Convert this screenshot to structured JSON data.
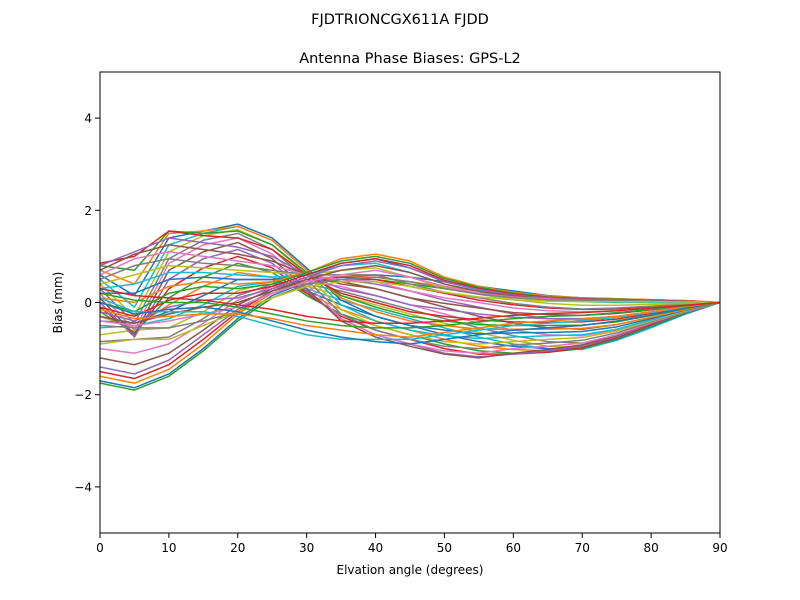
{
  "figure": {
    "suptitle": "FJDTRIONCGX611A FJDD"
  },
  "chart_data": {
    "type": "line",
    "title": "Antenna Phase Biases: GPS-L2",
    "xlabel": "Elvation angle (degrees)",
    "ylabel": "Bias (mm)",
    "xlim": [
      0,
      90
    ],
    "ylim": [
      -5,
      5
    ],
    "xticks": [
      0,
      10,
      20,
      30,
      40,
      50,
      60,
      70,
      80,
      90
    ],
    "yticks": [
      -4,
      -2,
      0,
      2,
      4
    ],
    "xtick_labels": [
      "0",
      "10",
      "20",
      "30",
      "40",
      "50",
      "60",
      "70",
      "80",
      "90"
    ],
    "ytick_labels": [
      "−4",
      "−2",
      "0",
      "2",
      "4"
    ],
    "grid": false,
    "legend": "none",
    "x": [
      0,
      5,
      10,
      15,
      20,
      25,
      30,
      35,
      40,
      45,
      50,
      55,
      60,
      65,
      70,
      75,
      80,
      85,
      90
    ],
    "colors": [
      "#1f77b4",
      "#ff7f0e",
      "#2ca02c",
      "#d62728",
      "#9467bd",
      "#8c564b",
      "#e377c2",
      "#7f7f7f",
      "#bcbd22",
      "#17becf"
    ],
    "series": [
      {
        "values": [
          -1.7,
          -1.85,
          -1.55,
          -1.0,
          -0.35,
          0.15,
          0.45,
          0.55,
          0.6,
          0.55,
          0.45,
          0.35,
          0.25,
          0.15,
          0.1,
          0.08,
          0.06,
          0.04,
          0.0
        ]
      },
      {
        "values": [
          -1.6,
          -1.75,
          -1.45,
          -0.9,
          -0.25,
          0.2,
          0.45,
          0.55,
          0.55,
          0.45,
          0.35,
          0.25,
          0.18,
          0.12,
          0.08,
          0.07,
          0.06,
          0.04,
          0.0
        ]
      },
      {
        "values": [
          -1.75,
          -1.9,
          -1.6,
          -1.05,
          -0.4,
          0.1,
          0.4,
          0.5,
          0.5,
          0.4,
          0.3,
          0.2,
          0.15,
          0.1,
          0.08,
          0.06,
          0.05,
          0.03,
          0.0
        ]
      },
      {
        "values": [
          -1.5,
          -1.65,
          -1.35,
          -0.8,
          -0.2,
          0.25,
          0.5,
          0.55,
          0.5,
          0.35,
          0.2,
          0.05,
          -0.05,
          -0.12,
          -0.15,
          -0.14,
          -0.1,
          -0.05,
          0.0
        ]
      },
      {
        "values": [
          -1.4,
          -1.55,
          -1.25,
          -0.7,
          -0.15,
          0.25,
          0.45,
          0.5,
          0.4,
          0.25,
          0.05,
          -0.1,
          -0.25,
          -0.35,
          -0.38,
          -0.32,
          -0.22,
          -0.1,
          0.0
        ]
      },
      {
        "values": [
          -1.2,
          -1.35,
          -1.1,
          -0.6,
          -0.05,
          0.3,
          0.5,
          0.45,
          0.3,
          0.1,
          -0.1,
          -0.3,
          -0.45,
          -0.55,
          -0.58,
          -0.48,
          -0.32,
          -0.15,
          0.0
        ]
      },
      {
        "values": [
          -1.0,
          -1.1,
          -0.9,
          -0.45,
          0.05,
          0.35,
          0.45,
          0.35,
          0.15,
          -0.05,
          -0.25,
          -0.45,
          -0.6,
          -0.7,
          -0.72,
          -0.6,
          -0.4,
          -0.18,
          0.0
        ]
      },
      {
        "values": [
          -0.85,
          -0.8,
          -0.75,
          -0.35,
          0.15,
          0.4,
          0.4,
          0.25,
          0.05,
          -0.15,
          -0.35,
          -0.55,
          -0.72,
          -0.85,
          -0.88,
          -0.72,
          -0.48,
          -0.22,
          0.0
        ]
      },
      {
        "values": [
          -0.7,
          -0.6,
          -0.55,
          -0.2,
          0.25,
          0.45,
          0.35,
          0.15,
          -0.05,
          -0.25,
          -0.45,
          -0.65,
          -0.82,
          -0.95,
          -0.98,
          -0.8,
          -0.52,
          -0.25,
          0.0
        ]
      },
      {
        "values": [
          -0.55,
          -0.5,
          -0.35,
          -0.05,
          0.35,
          0.45,
          0.3,
          0.05,
          -0.15,
          -0.35,
          -0.55,
          -0.75,
          -0.9,
          -1.0,
          -1.02,
          -0.82,
          -0.55,
          -0.25,
          0.0
        ]
      },
      {
        "values": [
          -0.4,
          -0.45,
          -0.2,
          0.15,
          0.5,
          0.5,
          0.25,
          -0.05,
          -0.3,
          -0.5,
          -0.7,
          -0.85,
          -0.95,
          -1.0,
          -1.0,
          -0.8,
          -0.52,
          -0.24,
          0.0
        ]
      },
      {
        "values": [
          -0.3,
          -0.55,
          -0.05,
          0.35,
          0.65,
          0.55,
          0.2,
          -0.15,
          -0.4,
          -0.6,
          -0.8,
          -0.95,
          -1.02,
          -1.05,
          -1.0,
          -0.78,
          -0.5,
          -0.22,
          0.0
        ]
      },
      {
        "values": [
          -0.2,
          -0.65,
          0.1,
          0.55,
          0.85,
          0.65,
          0.15,
          -0.25,
          -0.5,
          -0.7,
          -0.9,
          -1.05,
          -1.1,
          -1.08,
          -1.0,
          -0.78,
          -0.5,
          -0.22,
          0.0
        ]
      },
      {
        "values": [
          -0.1,
          -0.7,
          0.3,
          0.75,
          1.0,
          0.75,
          0.2,
          -0.3,
          -0.6,
          -0.8,
          -1.0,
          -1.12,
          -1.12,
          -1.08,
          -0.98,
          -0.76,
          -0.48,
          -0.2,
          0.0
        ]
      },
      {
        "values": [
          0.0,
          -0.75,
          0.5,
          0.95,
          1.15,
          0.85,
          0.25,
          -0.35,
          -0.7,
          -0.9,
          -1.1,
          -1.18,
          -1.12,
          -1.05,
          -0.95,
          -0.74,
          -0.46,
          -0.2,
          0.0
        ]
      },
      {
        "values": [
          0.1,
          -0.7,
          0.7,
          1.1,
          1.3,
          0.95,
          0.3,
          -0.4,
          -0.75,
          -0.95,
          -1.12,
          -1.2,
          -1.1,
          -1.02,
          -0.92,
          -0.72,
          -0.45,
          -0.2,
          0.0
        ]
      },
      {
        "values": [
          0.2,
          -0.6,
          0.85,
          1.25,
          1.4,
          1.05,
          0.4,
          -0.35,
          -0.7,
          -0.9,
          -1.05,
          -1.1,
          -1.0,
          -0.95,
          -0.88,
          -0.7,
          -0.44,
          -0.2,
          0.0
        ]
      },
      {
        "values": [
          0.3,
          -0.45,
          0.95,
          1.35,
          1.5,
          1.15,
          0.5,
          -0.25,
          -0.6,
          -0.8,
          -0.95,
          -1.0,
          -0.92,
          -0.88,
          -0.82,
          -0.66,
          -0.42,
          -0.19,
          0.0
        ]
      },
      {
        "values": [
          0.4,
          -0.3,
          1.1,
          1.45,
          1.58,
          1.25,
          0.6,
          -0.15,
          -0.5,
          -0.7,
          -0.85,
          -0.9,
          -0.85,
          -0.8,
          -0.76,
          -0.62,
          -0.4,
          -0.18,
          0.0
        ]
      },
      {
        "values": [
          0.5,
          -0.1,
          1.25,
          1.5,
          1.65,
          1.35,
          0.7,
          -0.05,
          -0.4,
          -0.6,
          -0.72,
          -0.78,
          -0.75,
          -0.72,
          -0.7,
          -0.58,
          -0.38,
          -0.17,
          0.0
        ]
      },
      {
        "values": [
          0.6,
          0.15,
          1.4,
          1.55,
          1.7,
          1.4,
          0.75,
          0.05,
          -0.3,
          -0.5,
          -0.6,
          -0.68,
          -0.66,
          -0.65,
          -0.63,
          -0.53,
          -0.35,
          -0.16,
          0.0
        ]
      },
      {
        "values": [
          0.7,
          0.4,
          1.5,
          1.55,
          1.65,
          1.35,
          0.7,
          0.1,
          -0.2,
          -0.4,
          -0.5,
          -0.58,
          -0.58,
          -0.58,
          -0.56,
          -0.48,
          -0.32,
          -0.15,
          0.0
        ]
      },
      {
        "values": [
          0.8,
          0.7,
          1.55,
          1.5,
          1.55,
          1.25,
          0.65,
          0.15,
          -0.1,
          -0.3,
          -0.4,
          -0.48,
          -0.5,
          -0.5,
          -0.49,
          -0.42,
          -0.28,
          -0.13,
          0.0
        ]
      },
      {
        "values": [
          0.85,
          1.0,
          1.55,
          1.45,
          1.4,
          1.15,
          0.6,
          0.2,
          0.0,
          -0.2,
          -0.3,
          -0.38,
          -0.42,
          -0.43,
          -0.42,
          -0.36,
          -0.24,
          -0.11,
          0.0
        ]
      },
      {
        "values": [
          0.8,
          1.1,
          1.4,
          1.3,
          1.2,
          1.0,
          0.6,
          0.3,
          0.15,
          -0.05,
          -0.15,
          -0.25,
          -0.32,
          -0.35,
          -0.35,
          -0.3,
          -0.2,
          -0.09,
          0.0
        ]
      },
      {
        "values": [
          0.7,
          1.05,
          1.25,
          1.15,
          1.05,
          0.9,
          0.6,
          0.4,
          0.3,
          0.1,
          -0.02,
          -0.12,
          -0.22,
          -0.26,
          -0.28,
          -0.24,
          -0.16,
          -0.07,
          0.0
        ]
      },
      {
        "values": [
          0.6,
          0.95,
          1.1,
          1.0,
          0.9,
          0.8,
          0.6,
          0.5,
          0.45,
          0.25,
          0.1,
          0.0,
          -0.12,
          -0.18,
          -0.2,
          -0.18,
          -0.12,
          -0.05,
          0.0
        ]
      },
      {
        "values": [
          0.5,
          0.8,
          0.95,
          0.85,
          0.8,
          0.7,
          0.6,
          0.6,
          0.6,
          0.4,
          0.22,
          0.1,
          -0.02,
          -0.1,
          -0.14,
          -0.12,
          -0.08,
          -0.03,
          0.0
        ]
      },
      {
        "values": [
          0.4,
          0.6,
          0.8,
          0.75,
          0.7,
          0.65,
          0.6,
          0.7,
          0.75,
          0.55,
          0.32,
          0.18,
          0.06,
          -0.02,
          -0.06,
          -0.06,
          -0.04,
          -0.02,
          0.0
        ]
      },
      {
        "values": [
          0.3,
          0.4,
          0.65,
          0.65,
          0.6,
          0.55,
          0.6,
          0.8,
          0.85,
          0.65,
          0.4,
          0.25,
          0.14,
          0.06,
          0.02,
          0.0,
          0.0,
          0.0,
          0.0
        ]
      },
      {
        "values": [
          0.2,
          0.2,
          0.5,
          0.55,
          0.5,
          0.5,
          0.6,
          0.85,
          0.95,
          0.75,
          0.46,
          0.3,
          0.18,
          0.1,
          0.06,
          0.04,
          0.03,
          0.02,
          0.0
        ]
      },
      {
        "values": [
          0.1,
          0.0,
          0.35,
          0.45,
          0.4,
          0.45,
          0.65,
          0.95,
          1.05,
          0.9,
          0.55,
          0.35,
          0.22,
          0.14,
          0.1,
          0.08,
          0.06,
          0.03,
          0.0
        ]
      },
      {
        "values": [
          0.0,
          -0.2,
          0.2,
          0.35,
          0.3,
          0.4,
          0.65,
          0.9,
          1.0,
          0.85,
          0.52,
          0.33,
          0.2,
          0.12,
          0.09,
          0.07,
          0.05,
          0.03,
          0.0
        ]
      },
      {
        "values": [
          -0.1,
          -0.3,
          0.05,
          0.2,
          0.2,
          0.35,
          0.6,
          0.85,
          0.95,
          0.8,
          0.48,
          0.3,
          0.18,
          0.11,
          0.08,
          0.06,
          0.05,
          0.03,
          0.0
        ]
      },
      {
        "values": [
          -0.2,
          -0.4,
          -0.1,
          0.05,
          0.1,
          0.3,
          0.55,
          0.8,
          0.9,
          0.75,
          0.45,
          0.28,
          0.16,
          0.1,
          0.07,
          0.06,
          0.04,
          0.02,
          0.0
        ]
      },
      {
        "values": [
          -0.3,
          -0.45,
          -0.25,
          -0.1,
          0.0,
          0.25,
          0.5,
          0.7,
          0.8,
          0.65,
          0.4,
          0.24,
          0.14,
          0.09,
          0.06,
          0.05,
          0.04,
          0.02,
          0.0
        ]
      },
      {
        "values": [
          -0.4,
          -0.5,
          -0.4,
          -0.25,
          -0.1,
          0.2,
          0.45,
          0.6,
          0.7,
          0.55,
          0.35,
          0.2,
          0.12,
          0.08,
          0.05,
          0.04,
          0.03,
          0.02,
          0.0
        ]
      },
      {
        "values": [
          -0.5,
          -0.55,
          -0.55,
          -0.4,
          -0.2,
          0.1,
          0.4,
          0.5,
          0.55,
          0.45,
          0.3,
          0.18,
          0.1,
          0.06,
          0.04,
          0.04,
          0.03,
          0.02,
          0.0
        ]
      },
      {
        "values": [
          -0.9,
          -0.8,
          -0.8,
          -0.5,
          -0.2,
          0.1,
          0.35,
          0.45,
          0.45,
          0.35,
          0.22,
          0.12,
          0.06,
          0.03,
          0.02,
          0.02,
          0.02,
          0.01,
          0.0
        ]
      },
      {
        "values": [
          0.1,
          -0.2,
          -0.2,
          -0.2,
          -0.3,
          -0.5,
          -0.7,
          -0.8,
          -0.8,
          -0.8,
          -0.7,
          -0.6,
          -0.5,
          -0.45,
          -0.4,
          -0.32,
          -0.22,
          -0.1,
          0.0
        ]
      },
      {
        "values": [
          0.0,
          -0.25,
          -0.15,
          -0.1,
          -0.2,
          -0.4,
          -0.6,
          -0.75,
          -0.85,
          -0.9,
          -0.8,
          -0.7,
          -0.6,
          -0.55,
          -0.5,
          -0.4,
          -0.27,
          -0.12,
          0.0
        ]
      },
      {
        "values": [
          -0.15,
          -0.35,
          -0.3,
          -0.25,
          -0.25,
          -0.35,
          -0.5,
          -0.6,
          -0.7,
          -0.75,
          -0.65,
          -0.55,
          -0.45,
          -0.4,
          -0.36,
          -0.3,
          -0.2,
          -0.09,
          0.0
        ]
      },
      {
        "values": [
          0.2,
          0.05,
          0.0,
          0.0,
          -0.1,
          -0.25,
          -0.4,
          -0.5,
          -0.55,
          -0.55,
          -0.5,
          -0.42,
          -0.35,
          -0.3,
          -0.28,
          -0.22,
          -0.15,
          -0.07,
          0.0
        ]
      },
      {
        "values": [
          0.3,
          0.15,
          0.1,
          0.05,
          -0.05,
          -0.15,
          -0.3,
          -0.4,
          -0.45,
          -0.45,
          -0.4,
          -0.34,
          -0.28,
          -0.24,
          -0.22,
          -0.18,
          -0.12,
          -0.06,
          0.0
        ]
      }
    ]
  }
}
